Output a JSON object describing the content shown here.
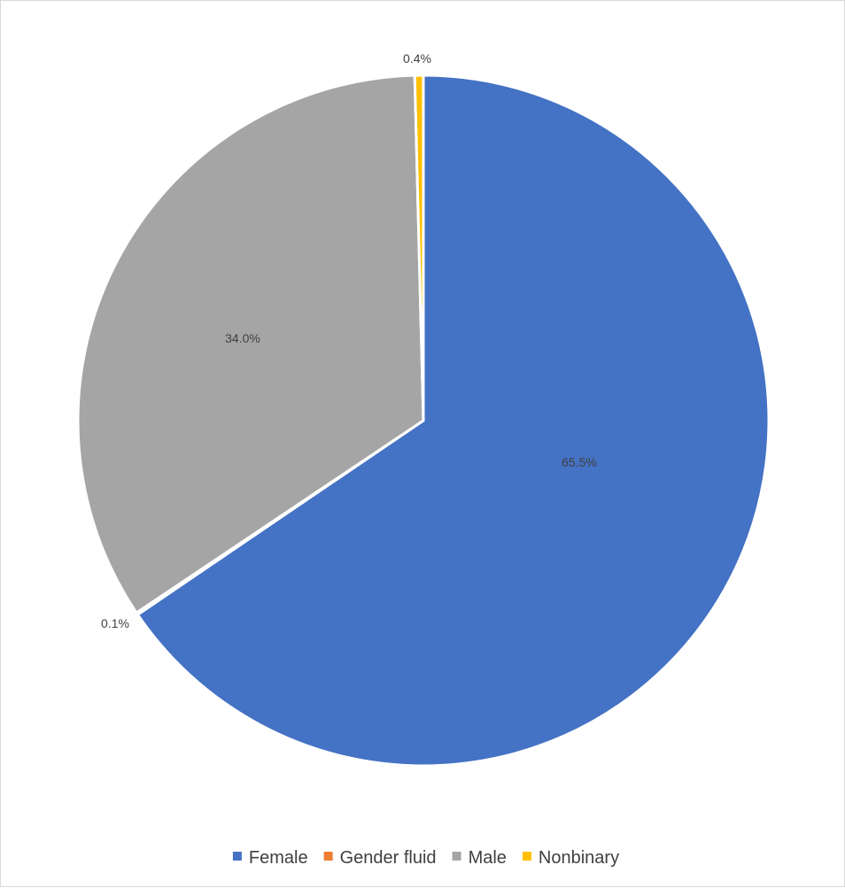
{
  "chart_data": {
    "type": "pie",
    "title": "",
    "legend_position": "bottom",
    "categories": [
      "Female",
      "Gender fluid",
      "Male",
      "Nonbinary"
    ],
    "values": [
      65.5,
      0.1,
      34.0,
      0.4
    ],
    "labels": [
      "65.5%",
      "0.1%",
      "34.0%",
      "0.4%"
    ],
    "colors": [
      "#4472C4",
      "#ED7D31",
      "#A5A5A5",
      "#FFC000"
    ]
  }
}
